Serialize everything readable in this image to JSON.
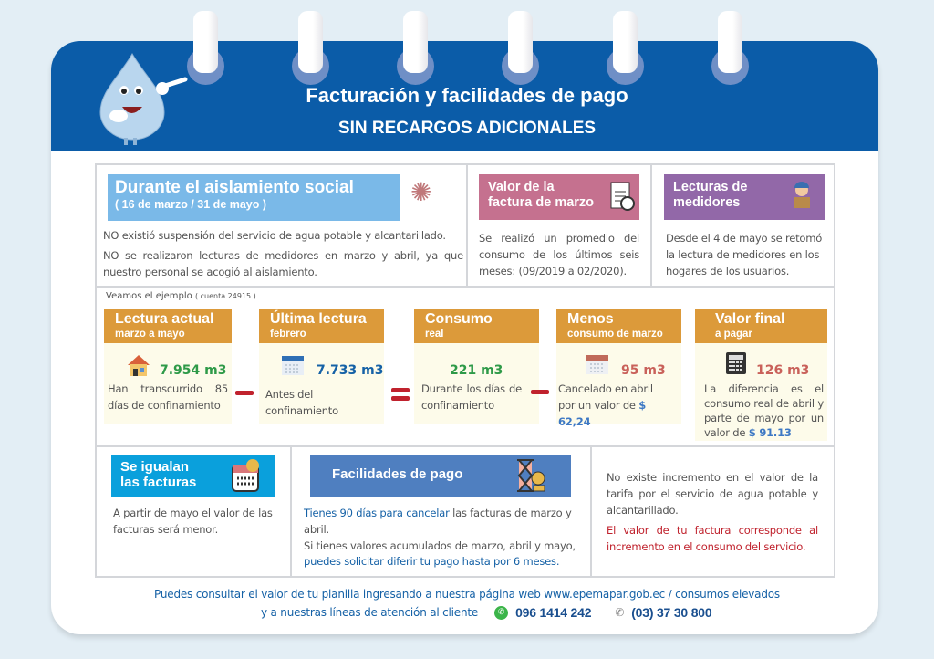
{
  "header": {
    "title": "Facturación y facilidades de pago",
    "subtitle": "SIN RECARGOS ADICIONALES"
  },
  "aislamiento": {
    "title": "Durante el aislamiento social",
    "dates": "( 16 de marzo / 31 de mayo )",
    "p1": "NO  existió suspensión del servicio de agua potable y alcantarillado.",
    "p2": "NO se realizaron lecturas de medidores en marzo y abril, ya que nuestro personal se acogió al aislamiento.",
    "icon": "virus-icon"
  },
  "factura_marzo": {
    "title_1": "Valor de la",
    "title_2": "factura de marzo",
    "text": "Se realizó un promedio del consumo de los últimos seis meses: (09/2019 a 02/2020).",
    "icon": "invoice-icon"
  },
  "lecturas": {
    "title_1": "Lecturas de",
    "title_2": "medidores",
    "text": "Desde el 4 de mayo se retomó la lectura de medidores en los hogares de los usuarios.",
    "icon": "worker-icon"
  },
  "ejemplo": {
    "label": "Veamos el ejemplo",
    "cuenta": "( cuenta 24915 )",
    "cards": [
      {
        "title": "Lectura actual",
        "sub": "marzo a mayo",
        "value": "7.954 m3",
        "text": "Han transcurrido 85 días de confinamiento",
        "icon": "house-icon"
      },
      {
        "title": "Última lectura",
        "sub": "febrero",
        "value": "7.733 m3",
        "text": "Antes del confinamiento",
        "icon": "calendar-icon"
      },
      {
        "title": "Consumo",
        "sub": "real",
        "value": "221 m3",
        "text": "Durante los días de confinamiento"
      },
      {
        "title": "Menos",
        "sub": "consumo de marzo",
        "value": "95 m3",
        "text": "Cancelado en abril",
        "text2": "por un valor de",
        "amount": "$ 62,24",
        "icon": "calendar-icon"
      },
      {
        "title": "Valor final",
        "sub": "a pagar",
        "value": "126 m3",
        "text": "La diferencia es el consumo real de abril y parte de mayo por un valor de",
        "amount": "$ 91.13",
        "icon": "calculator-icon"
      }
    ]
  },
  "igualan": {
    "title_1": "Se igualan",
    "title_2": "las facturas",
    "text": "A partir de mayo el valor de las facturas será menor.",
    "icon": "calendar-icon"
  },
  "facilidades": {
    "title": "Facilidades de pago",
    "hl1": "Tienes 90 días para cancelar",
    "t1": " las facturas de marzo y abril.",
    "t2": "Si tienes valores acumulados de marzo, abril y mayo,",
    "hl2": "puedes solicitar diferir tu pago  hasta por 6 meses.",
    "icon": "hourglass-money-icon"
  },
  "tarifa": {
    "text": "No existe incremento en el valor de la tarifa por el servicio de agua potable y alcantarillado.",
    "red": "El valor de tu factura corresponde al incremento en el consumo del servicio."
  },
  "footer": {
    "line1": "Puedes consultar el valor de tu planilla ingresando a nuestra página web www.epemapar.gob.ec  / consumos elevados",
    "line2": "y a nuestras líneas de atención al cliente",
    "whatsapp": "096 1414 242",
    "phone": "(03) 37 30 800"
  },
  "colors": {
    "header": "#0b5ca8",
    "light_blue": "#7ab9e8",
    "pink": "#c5718f",
    "purple": "#9268a8",
    "orange": "#dc9a3a",
    "cyan": "#0aa0dc",
    "steel_blue": "#4f7fc0",
    "green": "#2e9a48",
    "red": "#c0222d"
  }
}
